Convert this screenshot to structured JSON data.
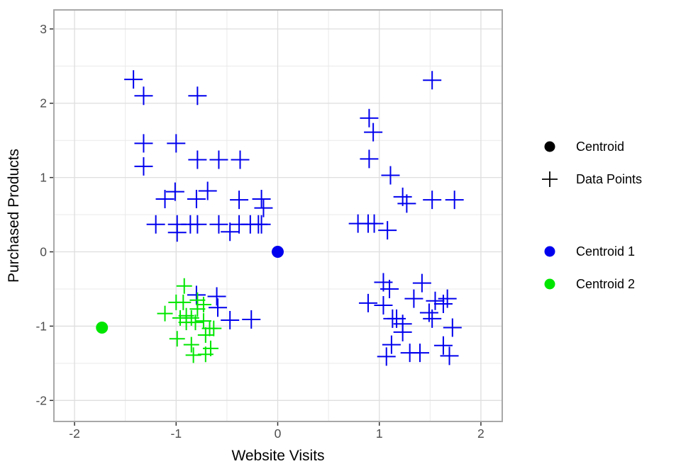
{
  "figure": {
    "background": "#ffffff"
  },
  "chart_data": {
    "type": "scatter",
    "title": "",
    "xlabel": "Website Visits",
    "ylabel": "Purchased Products",
    "xlim": [
      -2.203,
      2.21
    ],
    "ylim": [
      -2.283,
      3.256
    ],
    "x_ticks": [
      -2,
      -1,
      0,
      1,
      2
    ],
    "y_ticks": [
      -2,
      -1,
      0,
      1,
      2,
      3
    ],
    "x_minor_ticks": [
      -1.5,
      -0.5,
      0.5,
      1.5
    ],
    "y_minor_ticks": [
      -1.5,
      -0.5,
      0.5,
      1.5,
      2.5
    ],
    "grid": "major+minor",
    "legend_position": "right",
    "colors": {
      "blue": "#0000ee",
      "green": "#00e600",
      "black": "#000000",
      "grid_major": "#dedede",
      "grid_minor": "#e9e9e9",
      "panel_border": "#a8a8a8",
      "tick_mark": "#333333",
      "tick_label": "#4d4d4d",
      "axis_title": "#000000"
    },
    "series": [
      {
        "id": "data-points-cluster-1",
        "name": "Data Points (cluster 1)",
        "marker": "cross",
        "color": "#0000ee",
        "size": 13,
        "stroke_width": 2,
        "points": [
          [
            -1.42,
            2.32
          ],
          [
            -1.32,
            2.1
          ],
          [
            -0.79,
            2.1
          ],
          [
            -1.32,
            1.46
          ],
          [
            -1.0,
            1.46
          ],
          [
            -1.32,
            1.15
          ],
          [
            -0.79,
            1.24
          ],
          [
            -0.58,
            1.24
          ],
          [
            -0.37,
            1.24
          ],
          [
            -1.11,
            0.71
          ],
          [
            -1.01,
            0.81
          ],
          [
            -0.8,
            0.71
          ],
          [
            -0.69,
            0.82
          ],
          [
            -0.38,
            0.7
          ],
          [
            -0.16,
            0.71
          ],
          [
            -0.14,
            0.59
          ],
          [
            -1.2,
            0.37
          ],
          [
            -0.99,
            0.37
          ],
          [
            -0.86,
            0.37
          ],
          [
            -0.79,
            0.37
          ],
          [
            -0.58,
            0.37
          ],
          [
            -0.38,
            0.37
          ],
          [
            -0.27,
            0.37
          ],
          [
            -0.19,
            0.37
          ],
          [
            -0.16,
            0.37
          ],
          [
            -0.99,
            0.26
          ],
          [
            -0.47,
            0.27
          ],
          [
            1.52,
            2.31
          ],
          [
            0.9,
            1.8
          ],
          [
            0.94,
            1.61
          ],
          [
            0.9,
            1.25
          ],
          [
            1.11,
            1.03
          ],
          [
            1.23,
            0.74
          ],
          [
            1.27,
            0.65
          ],
          [
            1.52,
            0.7
          ],
          [
            1.74,
            0.7
          ],
          [
            0.79,
            0.38
          ],
          [
            0.89,
            0.38
          ],
          [
            0.95,
            0.38
          ],
          [
            1.08,
            0.29
          ],
          [
            -0.8,
            -0.58
          ],
          [
            -0.6,
            -0.6
          ],
          [
            -0.59,
            -0.75
          ],
          [
            -0.47,
            -0.92
          ],
          [
            -0.26,
            -0.91
          ],
          [
            1.04,
            -0.41
          ],
          [
            1.1,
            -0.5
          ],
          [
            1.42,
            -0.42
          ],
          [
            0.89,
            -0.69
          ],
          [
            1.04,
            -0.72
          ],
          [
            1.34,
            -0.63
          ],
          [
            1.55,
            -0.66
          ],
          [
            1.63,
            -0.7
          ],
          [
            1.67,
            -0.63
          ],
          [
            1.49,
            -0.82
          ],
          [
            1.52,
            -0.9
          ],
          [
            1.13,
            -0.9
          ],
          [
            1.17,
            -0.9
          ],
          [
            1.23,
            -0.97
          ],
          [
            1.23,
            -1.08
          ],
          [
            1.72,
            -1.02
          ],
          [
            1.12,
            -1.25
          ],
          [
            1.07,
            -1.41
          ],
          [
            1.3,
            -1.36
          ],
          [
            1.4,
            -1.36
          ],
          [
            1.63,
            -1.26
          ],
          [
            1.69,
            -1.4
          ]
        ]
      },
      {
        "id": "data-points-cluster-2",
        "name": "Data Points (cluster 2)",
        "marker": "cross",
        "color": "#00e600",
        "size": 11,
        "stroke_width": 2,
        "points": [
          [
            -0.92,
            -0.46
          ],
          [
            -1.11,
            -0.83
          ],
          [
            -1.0,
            -0.68
          ],
          [
            -0.93,
            -0.68
          ],
          [
            -0.79,
            -0.65
          ],
          [
            -0.79,
            -0.77
          ],
          [
            -0.73,
            -0.71
          ],
          [
            -0.96,
            -0.89
          ],
          [
            -0.9,
            -0.86
          ],
          [
            -0.9,
            -0.95
          ],
          [
            -0.85,
            -0.89
          ],
          [
            -0.81,
            -0.95
          ],
          [
            -0.73,
            -0.93
          ],
          [
            -0.67,
            -1.03
          ],
          [
            -0.63,
            -1.03
          ],
          [
            -0.71,
            -1.12
          ],
          [
            -0.99,
            -1.17
          ],
          [
            -0.85,
            -1.25
          ],
          [
            -0.66,
            -1.3
          ],
          [
            -0.83,
            -1.39
          ],
          [
            -0.71,
            -1.38
          ]
        ]
      },
      {
        "id": "centroid-1",
        "name": "Centroid 1",
        "marker": "dot",
        "color": "#0000ee",
        "size": 8.5,
        "points": [
          [
            0.0,
            0.0
          ]
        ]
      },
      {
        "id": "centroid-2",
        "name": "Centroid 2",
        "marker": "dot",
        "color": "#00e600",
        "size": 8.5,
        "points": [
          [
            -1.73,
            -1.02
          ]
        ]
      }
    ],
    "legend": {
      "groups": [
        {
          "entries": [
            {
              "label": "Centroid",
              "marker": "dot",
              "color": "#000000"
            },
            {
              "label": "Data Points",
              "marker": "cross",
              "color": "#000000"
            }
          ]
        },
        {
          "entries": [
            {
              "label": "Centroid 1",
              "marker": "dot",
              "color": "#0000ee"
            },
            {
              "label": "Centroid 2",
              "marker": "dot",
              "color": "#00e600"
            }
          ]
        }
      ]
    }
  }
}
